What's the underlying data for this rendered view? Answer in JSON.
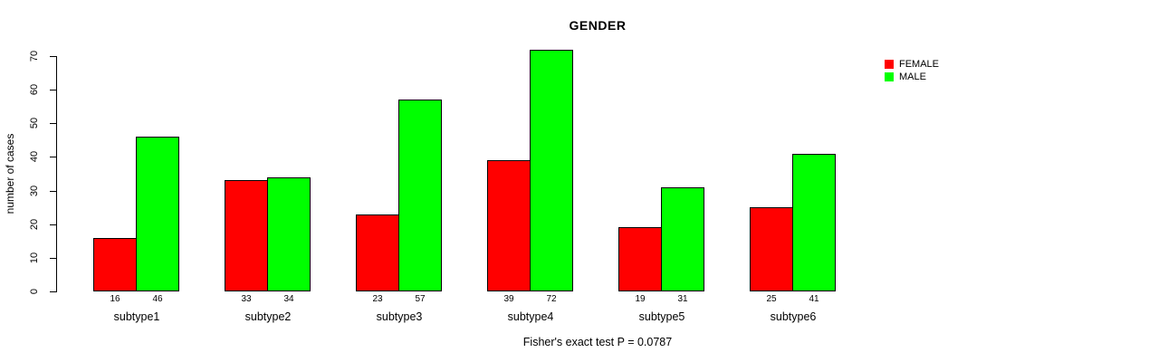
{
  "chart_data": {
    "type": "bar",
    "title": "GENDER",
    "ylabel": "number of cases",
    "xlabel": "",
    "caption": "Fisher's exact test P = 0.0787",
    "categories": [
      "subtype1",
      "subtype2",
      "subtype3",
      "subtype4",
      "subtype5",
      "subtype6"
    ],
    "series": [
      {
        "name": "FEMALE",
        "color": "#FF0000",
        "values": [
          16,
          33,
          23,
          39,
          19,
          25
        ]
      },
      {
        "name": "MALE",
        "color": "#00FF00",
        "values": [
          46,
          34,
          57,
          72,
          31,
          41
        ]
      }
    ],
    "ylim": [
      0,
      70
    ],
    "yticks": [
      0,
      10,
      20,
      30,
      40,
      50,
      60,
      70
    ],
    "bar_value_labels": true,
    "grid": false,
    "legend": {
      "position": "top-right"
    }
  }
}
